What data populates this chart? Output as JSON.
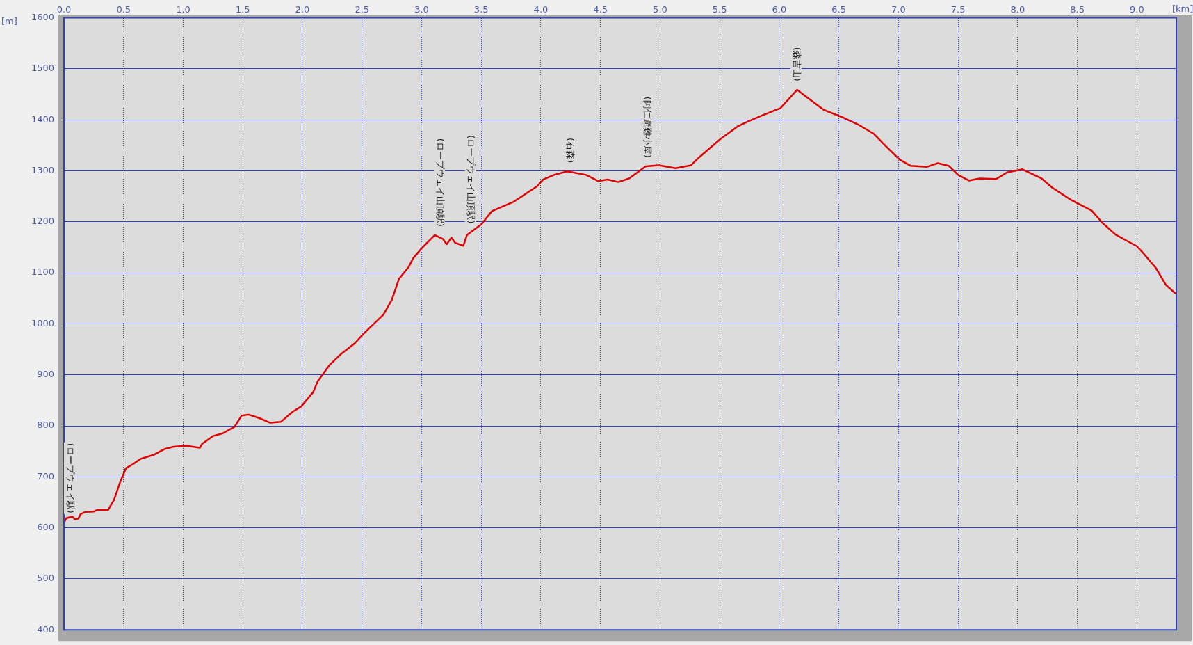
{
  "chart_data": {
    "type": "line",
    "xlabel": "[km]",
    "ylabel": "[m]",
    "x": [
      0,
      0.02,
      0.07,
      0.09,
      0.12,
      0.14,
      0.18,
      0.25,
      0.28,
      0.37,
      0.42,
      0.47,
      0.52,
      0.58,
      0.64,
      0.75,
      0.85,
      0.92,
      1.02,
      1.14,
      1.16,
      1.25,
      1.33,
      1.43,
      1.49,
      1.55,
      1.64,
      1.73,
      1.82,
      1.92,
      1.99,
      2.09,
      2.13,
      2.23,
      2.33,
      2.44,
      2.51,
      2.59,
      2.68,
      2.75,
      2.81,
      2.89,
      2.93,
      3.0,
      3.11,
      3.18,
      3.21,
      3.25,
      3.28,
      3.35,
      3.38,
      3.5,
      3.59,
      3.77,
      3.97,
      4.02,
      4.11,
      4.22,
      4.38,
      4.48,
      4.56,
      4.65,
      4.74,
      4.88,
      4.99,
      5.13,
      5.26,
      5.33,
      5.51,
      5.65,
      5.74,
      5.87,
      6.01,
      6.08,
      6.15,
      6.21,
      6.37,
      6.54,
      6.66,
      6.79,
      6.9,
      7.01,
      7.1,
      7.24,
      7.33,
      7.42,
      7.5,
      7.59,
      7.68,
      7.82,
      7.91,
      8.04,
      8.2,
      8.29,
      8.44,
      8.62,
      8.71,
      8.82,
      8.89,
      9.0,
      9.04,
      9.16,
      9.24,
      9.32
    ],
    "series": [
      {
        "color": "#e00000",
        "values": [
          610,
          619,
          622,
          617,
          618,
          627,
          631,
          632,
          635,
          635,
          655,
          689,
          717,
          725,
          735,
          743,
          755,
          759,
          761,
          757,
          765,
          780,
          785,
          798,
          820,
          822,
          815,
          806,
          808,
          828,
          838,
          866,
          888,
          920,
          942,
          962,
          980,
          998,
          1018,
          1047,
          1088,
          1111,
          1129,
          1148,
          1174,
          1166,
          1156,
          1169,
          1159,
          1153,
          1174,
          1195,
          1221,
          1239,
          1270,
          1283,
          1292,
          1299,
          1292,
          1280,
          1283,
          1278,
          1285,
          1309,
          1311,
          1305,
          1311,
          1327,
          1363,
          1387,
          1397,
          1410,
          1423,
          1441,
          1459,
          1448,
          1420,
          1404,
          1391,
          1373,
          1347,
          1322,
          1310,
          1308,
          1315,
          1310,
          1292,
          1281,
          1285,
          1284,
          1297,
          1303,
          1285,
          1267,
          1244,
          1222,
          1198,
          1175,
          1166,
          1152,
          1142,
          1109,
          1077,
          1060
        ]
      }
    ],
    "xlim": [
      0,
      9.33
    ],
    "ylim": [
      400,
      1600
    ],
    "xticks": [
      {
        "value": 0,
        "label": "0.0"
      },
      {
        "value": 0.5,
        "label": "0.5"
      },
      {
        "value": 1,
        "label": "1.0"
      },
      {
        "value": 1.5,
        "label": "1.5"
      },
      {
        "value": 2,
        "label": "2.0"
      },
      {
        "value": 2.5,
        "label": "2.5"
      },
      {
        "value": 3,
        "label": "3.0"
      },
      {
        "value": 3.5,
        "label": "3.5"
      },
      {
        "value": 4,
        "label": "4.0"
      },
      {
        "value": 4.5,
        "label": "4.5"
      },
      {
        "value": 5,
        "label": "5.0"
      },
      {
        "value": 5.5,
        "label": "5.5"
      },
      {
        "value": 6,
        "label": "6.0"
      },
      {
        "value": 6.5,
        "label": "6.5"
      },
      {
        "value": 7,
        "label": "7.0"
      },
      {
        "value": 7.5,
        "label": "7.5"
      },
      {
        "value": 8,
        "label": "8.0"
      },
      {
        "value": 8.5,
        "label": "8.5"
      },
      {
        "value": 9,
        "label": "9.0"
      }
    ],
    "yticks": [
      400,
      500,
      600,
      700,
      800,
      900,
      1000,
      1100,
      1200,
      1300,
      1400,
      1500,
      1600
    ],
    "grid": true,
    "legend": false,
    "marker": "none",
    "line_style": "solid",
    "annotations": [
      {
        "text": "(ロープウェイ駅)",
        "x": 0,
        "y": 612
      },
      {
        "text": "(ロープウェイ山頂駅)",
        "x": 3.15,
        "y": 1174
      },
      {
        "text": "(ロープウェイ山頂駅)",
        "x": 3.41,
        "y": 1180
      },
      {
        "text": "(石森)",
        "x": 4.24,
        "y": 1299
      },
      {
        "text": "(阿仁避難小屋)",
        "x": 4.89,
        "y": 1309
      },
      {
        "text": "(森吉山)",
        "x": 6.14,
        "y": 1459
      }
    ]
  }
}
